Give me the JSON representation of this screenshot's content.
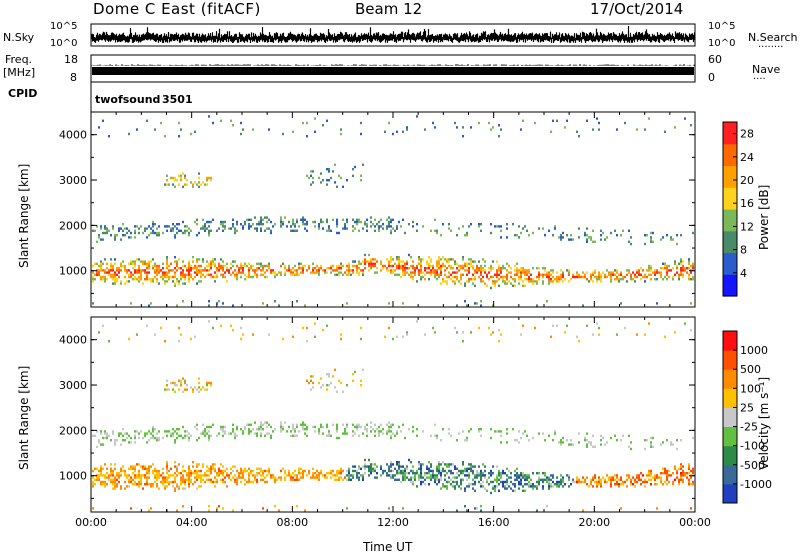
{
  "header": {
    "station": "Dome C East (fitACF)",
    "beam": "Beam 12",
    "date": "17/Oct/2014"
  },
  "sky_panel": {
    "left_label": "N.Sky",
    "left_ticks": [
      "10^5",
      "10^0"
    ],
    "right_ticks": [
      "10^5",
      "10^0"
    ],
    "right_label": "N.Search",
    "right_dots": "........"
  },
  "freq_panel": {
    "left_label_1": "Freq.",
    "left_label_2": "[MHz]",
    "left_ticks": [
      "18",
      "8"
    ],
    "right_ticks": [
      "60",
      "0"
    ],
    "right_label": "Nave",
    "right_dots": "...."
  },
  "cpid": {
    "label": "CPID",
    "program": "twofsound",
    "id": "3501"
  },
  "chart_data": [
    {
      "type": "heatmap",
      "quantity": "Power",
      "ylabel": "Slant Range [km]",
      "xlabel": "",
      "ylim": [
        200,
        4500
      ],
      "yticks": [
        "4000",
        "3000",
        "2000",
        "1000"
      ],
      "xlim": [
        "00:00",
        "00:00"
      ],
      "colorbar": {
        "label": "Power [dB]",
        "ticks": [
          "28",
          "24",
          "20",
          "16",
          "12",
          "8",
          "4"
        ],
        "range": [
          0,
          30
        ],
        "colors": [
          "#1414ff",
          "#2b5ccc",
          "#4a8a6a",
          "#7ab85a",
          "#ffd21e",
          "#ffa000",
          "#ff6a00",
          "#ff2020"
        ]
      }
    },
    {
      "type": "heatmap",
      "quantity": "Velocity",
      "ylabel": "Slant Range [km]",
      "xlabel": "Time UT",
      "ylim": [
        200,
        4500
      ],
      "yticks": [
        "4000",
        "3000",
        "2000",
        "1000"
      ],
      "xticks": [
        "00:00",
        "04:00",
        "08:00",
        "12:00",
        "16:00",
        "20:00",
        "00:00"
      ],
      "colorbar": {
        "label": "Velocity [m s⁻¹]",
        "ticks": [
          "1000",
          "500",
          "100",
          "25",
          "-25",
          "-100",
          "-500",
          "-1000"
        ],
        "colors": [
          "#2040c0",
          "#3a6a9a",
          "#2f8a4a",
          "#62c040",
          "#c8c8c8",
          "#ffc000",
          "#ff8c00",
          "#ff5000",
          "#ff1010"
        ]
      }
    }
  ],
  "colors": {
    "grid": "#000000",
    "sky_fill": "#000000",
    "freq_fill": "#000000"
  }
}
